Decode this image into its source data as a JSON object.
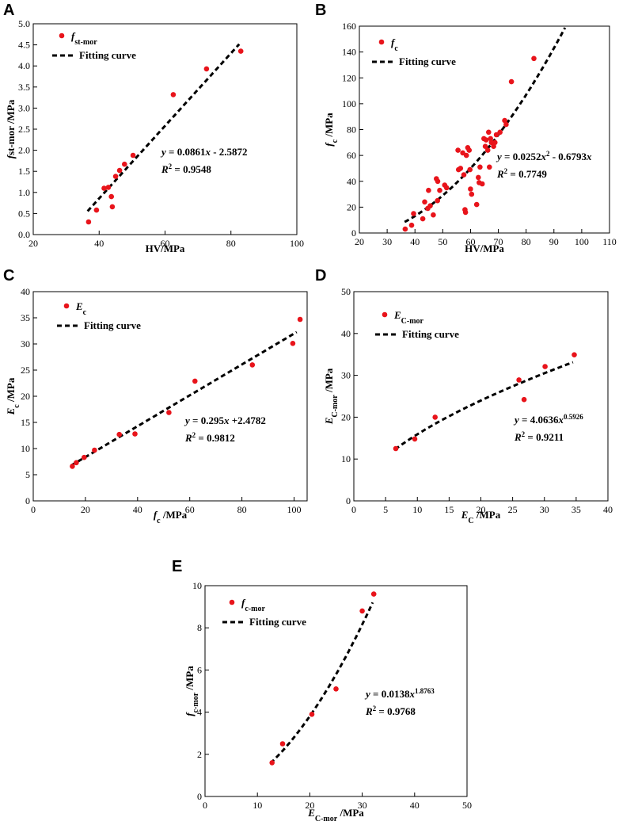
{
  "chart_data": [
    {
      "type": "scatter",
      "panel": "A",
      "xlabel": "HV/MPa",
      "ylabel": "st-mor /MPa",
      "ylabel_var": "f",
      "xlim": [
        20,
        100
      ],
      "ylim": [
        0.0,
        5.0
      ],
      "x_ticks": [
        20,
        40,
        60,
        80,
        100
      ],
      "y_ticks": [
        0.0,
        0.5,
        1.0,
        1.5,
        2.0,
        2.5,
        3.0,
        3.5,
        4.0,
        4.5,
        5.0
      ],
      "tick_decimals_y": 1,
      "legend": {
        "series_var": "f",
        "series_sub": "st-mor",
        "fit": "Fitting curve"
      },
      "equation": {
        "line1": "y = 0.0861x - 2.5872",
        "line2": "R² = 0.9548"
      },
      "series": [
        {
          "name": "fst-mor",
          "x": [
            36.8,
            39.2,
            41.5,
            42.8,
            43.7,
            44.0,
            45.0,
            46.2,
            47.7,
            50.3,
            62.5,
            72.6,
            83.0
          ],
          "y": [
            0.3,
            0.58,
            1.1,
            1.12,
            0.9,
            0.66,
            1.38,
            1.52,
            1.67,
            1.88,
            3.32,
            3.93,
            4.35
          ]
        }
      ],
      "fit": {
        "kind": "linear",
        "a": 0.0861,
        "b": -2.5872,
        "x_range": [
          36.5,
          82.5
        ]
      }
    },
    {
      "type": "scatter",
      "panel": "B",
      "xlabel": "HV/MPa",
      "ylabel": "/MPa",
      "ylabel_var": "f",
      "ylabel_sub": "c",
      "xlim": [
        20,
        110
      ],
      "ylim": [
        0,
        160
      ],
      "x_ticks": [
        20,
        30,
        40,
        50,
        60,
        70,
        80,
        90,
        100,
        110
      ],
      "y_ticks": [
        0,
        20,
        40,
        60,
        80,
        100,
        120,
        140,
        160
      ],
      "tick_decimals_y": 0,
      "legend": {
        "series_var": "f",
        "series_sub": "c",
        "fit": "Fitting curve"
      },
      "equation": {
        "line1": "y = 0.0252x² - 0.6793x",
        "line2": "R² = 0.7749"
      },
      "series": [
        {
          "name": "fc",
          "x": [
            36.5,
            38.8,
            39.5,
            42.8,
            43.5,
            44.6,
            44.9,
            45.5,
            46.6,
            47.7,
            48.1,
            48.2,
            48.9,
            50.7,
            51.4,
            55.5,
            55.7,
            56.4,
            57.2,
            57.6,
            58.0,
            58.2,
            58.5,
            59.0,
            59.5,
            59.8,
            60.0,
            60.4,
            62.2,
            62.8,
            63.1,
            63.4,
            64.2,
            64.8,
            65.3,
            65.6,
            66.2,
            66.5,
            66.8,
            67.2,
            67.5,
            68.3,
            68.8,
            69.3,
            70.6,
            72.3,
            72.8,
            74.7,
            82.8
          ],
          "y": [
            3,
            6,
            15,
            11,
            24,
            19,
            33,
            21,
            14,
            42,
            25,
            40,
            33,
            37,
            35,
            64,
            49,
            50,
            62,
            45,
            18,
            16,
            60,
            66,
            64,
            49,
            34,
            30,
            22,
            43,
            39,
            51,
            38,
            73,
            67,
            72,
            64,
            78,
            51,
            73,
            70,
            67,
            70,
            76,
            78,
            87,
            84,
            117,
            135
          ]
        }
      ],
      "fit": {
        "kind": "quadratic",
        "a": 0.0252,
        "b": -0.6793,
        "x_range": [
          36.3,
          94.0
        ]
      }
    },
    {
      "type": "scatter",
      "panel": "C",
      "xlabel": "/MPa",
      "xlabel_var": "f",
      "xlabel_sub": "c",
      "ylabel": "/MPa",
      "ylabel_var": "E",
      "ylabel_sub": "c",
      "xlim": [
        0,
        105
      ],
      "ylim": [
        0,
        40
      ],
      "x_ticks": [
        0,
        20,
        40,
        60,
        80,
        100
      ],
      "y_ticks": [
        0,
        5,
        10,
        15,
        20,
        25,
        30,
        35,
        40
      ],
      "tick_decimals_y": 0,
      "legend": {
        "series_var": "E",
        "series_sub": "c",
        "fit": "Fitting curve"
      },
      "equation": {
        "line1": "y = 0.295x +2.4782",
        "line2": "R² = 0.9812"
      },
      "series": [
        {
          "name": "Ec",
          "x": [
            15.0,
            16.5,
            19.5,
            23.5,
            33.0,
            39.0,
            52.0,
            62.0,
            84.0,
            99.5,
            102.3
          ],
          "y": [
            6.6,
            7.3,
            8.3,
            9.7,
            12.7,
            12.8,
            16.9,
            22.9,
            26.0,
            30.1,
            34.7
          ]
        }
      ],
      "fit": {
        "kind": "linear",
        "a": 0.295,
        "b": 2.4782,
        "x_range": [
          14.5,
          101.0
        ]
      }
    },
    {
      "type": "scatter",
      "panel": "D",
      "xlabel": "/MPa",
      "xlabel_var": "E",
      "xlabel_sub": "C",
      "ylabel": "/MPa",
      "ylabel_var": "E",
      "ylabel_sub": "C-mor",
      "xlim": [
        0,
        40
      ],
      "ylim": [
        0,
        50
      ],
      "x_ticks": [
        0,
        5,
        10,
        15,
        20,
        25,
        30,
        35,
        40
      ],
      "y_ticks": [
        0,
        10,
        20,
        30,
        40,
        50
      ],
      "tick_decimals_y": 0,
      "legend": {
        "series_var": "E",
        "series_sub": "C-mor",
        "fit": "Fitting curve"
      },
      "equation": {
        "line1": "y = 4.0636x^0.5926",
        "line2": "R² = 0.9211"
      },
      "series": [
        {
          "name": "EC-mor",
          "x": [
            6.6,
            9.6,
            12.8,
            26.0,
            26.8,
            30.1,
            34.7
          ],
          "y": [
            12.5,
            14.8,
            20.0,
            28.9,
            24.2,
            32.1,
            34.9
          ]
        }
      ],
      "fit": {
        "kind": "power",
        "a": 4.0636,
        "b": 0.5926,
        "x_range": [
          6.5,
          34.5
        ]
      }
    },
    {
      "type": "scatter",
      "panel": "E",
      "xlabel": "/MPa",
      "xlabel_var": "E",
      "xlabel_sub": "C-mor",
      "ylabel": "/MPa",
      "ylabel_var": "f",
      "ylabel_sub": "c-mor",
      "xlim": [
        0,
        50
      ],
      "ylim": [
        0,
        10
      ],
      "x_ticks": [
        0,
        10,
        20,
        30,
        40,
        50
      ],
      "y_ticks": [
        0,
        2,
        4,
        6,
        8,
        10
      ],
      "tick_decimals_y": 0,
      "legend": {
        "series_var": "f",
        "series_sub": "c-mor",
        "fit": "Fitting curve"
      },
      "equation": {
        "line1": "y = 0.0138x^1.8763",
        "line2": "R² = 0.9768"
      },
      "series": [
        {
          "name": "fc-mor",
          "x": [
            12.8,
            14.8,
            20.4,
            25.0,
            30.0,
            32.2
          ],
          "y": [
            1.6,
            2.5,
            3.9,
            5.1,
            8.8,
            9.6
          ]
        }
      ],
      "fit": {
        "kind": "power",
        "a": 0.0138,
        "b": 1.8763,
        "x_range": [
          12.5,
          32.0
        ]
      }
    }
  ]
}
